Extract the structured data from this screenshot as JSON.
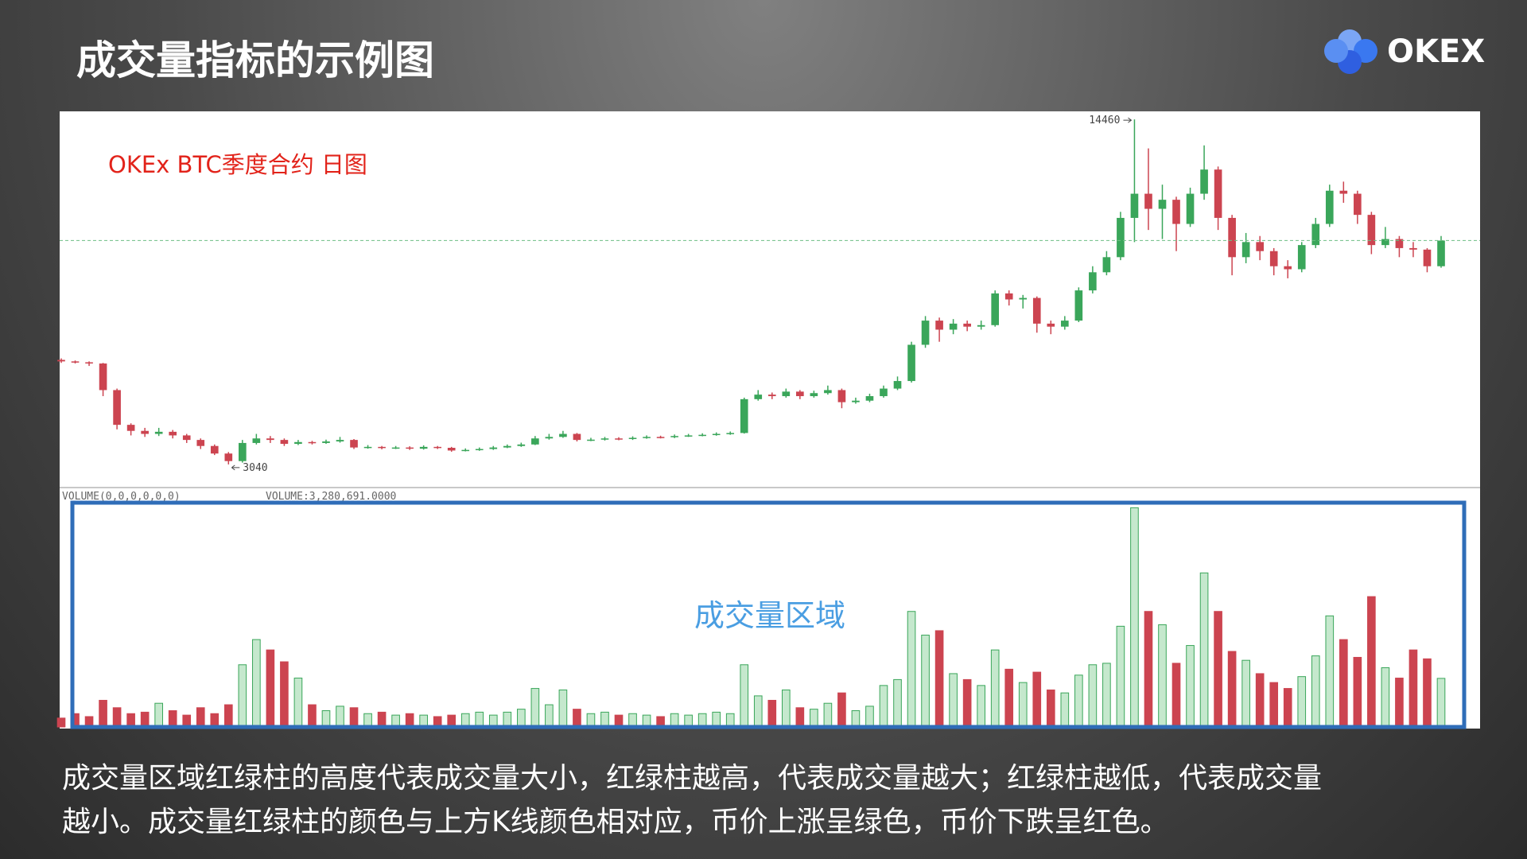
{
  "title": "成交量指标的示例图",
  "logo": "OKEX",
  "caption": [
    "成交量区域红绿柱的高度代表成交量大小，红绿柱越高，代表成交量越大；红绿柱越低，代表成交量",
    "越小。成交量红绿柱的颜色与上方K线颜色相对应，币价上涨呈绿色，币价下跌呈红色。"
  ],
  "chart_data": {
    "type": "candlestick",
    "title": "OKEx  BTC季度合约  日图",
    "annotation": "成交量区域",
    "volume_title": "VOLUME(0,0,0,0,0,0)",
    "volume_readout": "VOLUME:3,280,691.0000",
    "up_color": "#3aa65a",
    "down_color": "#cc4450",
    "volume_up_fill": "#c5e8cd",
    "ylim": [
      2300,
      14700
    ],
    "y2lim": [
      0,
      16000000
    ],
    "open": [
      6500,
      6450,
      6420,
      6380,
      5500,
      4350,
      4150,
      4050,
      4120,
      4000,
      3850,
      3650,
      3400,
      3150,
      3750,
      3900,
      3850,
      3720,
      3780,
      3750,
      3800,
      3850,
      3600,
      3620,
      3580,
      3600,
      3560,
      3620,
      3590,
      3500,
      3520,
      3550,
      3600,
      3650,
      3700,
      3900,
      3950,
      4050,
      3850,
      3860,
      3900,
      3880,
      3920,
      3950,
      3940,
      3980,
      4000,
      4020,
      4050,
      4080,
      5200,
      5350,
      5300,
      5450,
      5300,
      5400,
      5500,
      5100,
      5150,
      5300,
      5550,
      5800,
      7000,
      7800,
      7500,
      7700,
      7600,
      7650,
      8700,
      8500,
      8550,
      7700,
      7600,
      7800,
      8800,
      9400,
      9900,
      11200,
      12000,
      11500,
      11800,
      11000,
      12000,
      12800,
      11200,
      9900,
      10400,
      10100,
      9600,
      9500,
      10300,
      11000,
      12100,
      12000,
      11300,
      10300,
      10500,
      10200,
      10150,
      9600
    ],
    "high": [
      6550,
      6480,
      6450,
      6400,
      5550,
      4400,
      4250,
      4250,
      4180,
      4050,
      3900,
      3700,
      3450,
      3850,
      4050,
      3980,
      3900,
      3850,
      3820,
      3860,
      3950,
      3880,
      3680,
      3650,
      3650,
      3640,
      3670,
      3650,
      3620,
      3570,
      3600,
      3650,
      3700,
      3760,
      3980,
      4050,
      4150,
      4080,
      3920,
      3950,
      3940,
      3970,
      4000,
      3990,
      4030,
      4050,
      4070,
      4100,
      4130,
      5250,
      5500,
      5420,
      5550,
      5500,
      5480,
      5650,
      5550,
      5250,
      5380,
      5650,
      5950,
      7100,
      7950,
      7900,
      7850,
      7800,
      7800,
      8800,
      8800,
      8650,
      8600,
      7800,
      7950,
      8900,
      9600,
      10100,
      11400,
      14460,
      13500,
      12300,
      11900,
      12200,
      13600,
      12900,
      11300,
      10700,
      10600,
      10200,
      9800,
      10400,
      11200,
      12300,
      12400,
      12100,
      11400,
      10900,
      10600,
      10400,
      10200,
      10600
    ],
    "low": [
      6400,
      6380,
      6300,
      5300,
      4200,
      4000,
      3950,
      3980,
      3900,
      3750,
      3550,
      3350,
      3040,
      3100,
      3700,
      3750,
      3650,
      3680,
      3700,
      3720,
      3760,
      3550,
      3560,
      3540,
      3550,
      3520,
      3530,
      3550,
      3460,
      3470,
      3490,
      3520,
      3580,
      3620,
      3680,
      3860,
      3920,
      3800,
      3810,
      3830,
      3840,
      3850,
      3890,
      3900,
      3910,
      3950,
      3970,
      3990,
      4020,
      4060,
      5150,
      5200,
      5250,
      5200,
      5250,
      5350,
      4900,
      5050,
      5100,
      5250,
      5500,
      5750,
      6900,
      7100,
      7350,
      7450,
      7500,
      7600,
      8300,
      8200,
      7400,
      7350,
      7500,
      7750,
      8700,
      9300,
      9800,
      10400,
      10800,
      10500,
      10100,
      10900,
      11800,
      10800,
      9300,
      9700,
      9800,
      9300,
      9200,
      9400,
      10200,
      10900,
      11700,
      11000,
      10000,
      10200,
      9900,
      9900,
      9400,
      9550
    ],
    "close": [
      6450,
      6420,
      6380,
      5500,
      4350,
      4150,
      4050,
      4120,
      4000,
      3850,
      3650,
      3400,
      3150,
      3750,
      3900,
      3850,
      3720,
      3780,
      3750,
      3800,
      3850,
      3600,
      3620,
      3580,
      3600,
      3560,
      3620,
      3590,
      3500,
      3520,
      3550,
      3600,
      3650,
      3700,
      3900,
      3950,
      4050,
      3850,
      3860,
      3900,
      3880,
      3920,
      3950,
      3940,
      3980,
      4000,
      4020,
      4050,
      4080,
      5200,
      5350,
      5300,
      5450,
      5300,
      5400,
      5500,
      5100,
      5150,
      5300,
      5550,
      5800,
      7000,
      7800,
      7500,
      7700,
      7600,
      7650,
      8700,
      8500,
      8550,
      7700,
      7600,
      7800,
      8800,
      9400,
      9900,
      11200,
      12000,
      11500,
      11800,
      11000,
      12000,
      12800,
      11200,
      9900,
      10400,
      10100,
      9600,
      9500,
      10300,
      11000,
      12100,
      12000,
      11300,
      10300,
      10500,
      10200,
      10150,
      9600,
      10450
    ],
    "volume": [
      600000,
      900000,
      700000,
      1800000,
      1300000,
      900000,
      1000000,
      1600000,
      1100000,
      800000,
      1300000,
      900000,
      1500000,
      4200000,
      5900000,
      5200000,
      4400000,
      3300000,
      1500000,
      1100000,
      1400000,
      1300000,
      900000,
      1000000,
      800000,
      900000,
      800000,
      700000,
      800000,
      900000,
      1000000,
      800000,
      1000000,
      1200000,
      2600000,
      1500000,
      2500000,
      1200000,
      900000,
      1000000,
      800000,
      900000,
      800000,
      700000,
      900000,
      800000,
      900000,
      1000000,
      900000,
      4200000,
      2100000,
      1800000,
      2500000,
      1300000,
      1200000,
      1600000,
      2300000,
      1100000,
      1400000,
      2800000,
      3200000,
      7800000,
      6200000,
      6500000,
      3600000,
      3200000,
      2800000,
      5200000,
      3900000,
      3000000,
      3700000,
      2500000,
      2300000,
      3500000,
      4200000,
      4300000,
      6800000,
      14800000,
      7800000,
      6900000,
      4300000,
      5500000,
      10400000,
      7800000,
      5100000,
      4500000,
      3600000,
      3000000,
      2600000,
      3400000,
      4800000,
      7500000,
      5900000,
      4700000,
      8800000,
      4000000,
      3300000,
      5200000,
      4600000,
      3280691
    ]
  }
}
